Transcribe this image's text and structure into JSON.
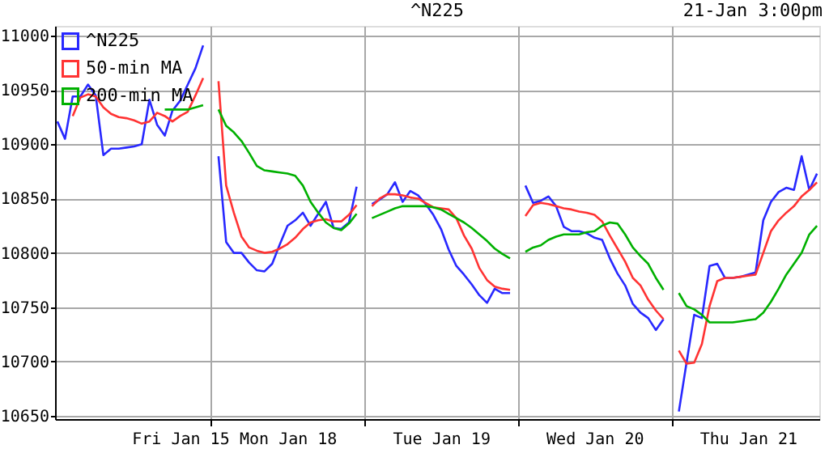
{
  "chart_data": {
    "type": "line",
    "title": "^N225",
    "annotations": [
      "21-Jan 3:00pm"
    ],
    "categories": [
      null,
      null,
      null,
      null,
      null,
      null,
      null,
      null,
      null,
      null,
      null,
      null,
      null,
      null,
      null,
      null,
      "Fri Jan 15",
      null,
      null,
      null,
      null,
      null,
      null,
      null,
      null,
      null,
      null,
      null,
      null,
      null,
      "Mon Jan 18",
      null,
      null,
      null,
      null,
      null,
      null,
      null,
      null,
      null,
      null,
      null,
      null,
      null,
      null,
      null,
      null,
      null,
      null,
      null,
      "Tue Jan 19",
      null,
      null,
      null,
      null,
      null,
      null,
      null,
      null,
      null,
      null,
      null,
      null,
      null,
      null,
      null,
      null,
      null,
      null,
      null,
      "Wed Jan 20",
      null,
      null,
      null,
      null,
      null,
      null,
      null,
      null,
      null,
      null,
      null,
      null,
      null,
      null,
      null,
      null,
      null,
      null,
      null,
      "Thu Jan 21",
      null,
      null,
      null,
      null,
      null,
      null,
      null,
      null,
      null
    ],
    "ylim": [
      10647,
      11009
    ],
    "yticks": [
      10650,
      10700,
      10750,
      10800,
      10850,
      10900,
      10950,
      11000
    ],
    "grid": true,
    "legend": "top left",
    "marker": "none",
    "line_style": "solid",
    "series": [
      {
        "name": "^N225",
        "color": "#2828ff",
        "values": [
          10921,
          10905,
          10944,
          10944,
          10955,
          10945,
          10890,
          10896,
          10896,
          10897,
          10898,
          10900,
          10941,
          10918,
          10908,
          10931,
          10940,
          10955,
          10970,
          10991,
          null,
          10889,
          10810,
          10800,
          10800,
          10791,
          10784,
          10783,
          10790,
          10808,
          10825,
          10830,
          10837,
          10825,
          10836,
          10847,
          10823,
          10822,
          10828,
          10861,
          null,
          10845,
          10849,
          10854,
          10865,
          10847,
          10857,
          10853,
          10845,
          10835,
          10822,
          10803,
          10788,
          10780,
          10771,
          10761,
          10754,
          10767,
          10763,
          10763,
          null,
          10862,
          10846,
          10848,
          10852,
          10843,
          10824,
          10820,
          10820,
          10818,
          10814,
          10812,
          10795,
          10781,
          10770,
          10753,
          10745,
          10740,
          10729,
          10739,
          null,
          10654,
          10699,
          10743,
          10740,
          10788,
          10790,
          10777,
          10777,
          10778,
          10780,
          10782,
          10830,
          10847,
          10856,
          10860,
          10858,
          10889,
          10858,
          10873
        ]
      },
      {
        "name": "50-min MA",
        "color": "#ff3333",
        "values": [
          null,
          null,
          10926,
          10943,
          10946,
          10944,
          10934,
          10928,
          10925,
          10924,
          10922,
          10919,
          10921,
          10929,
          10926,
          10921,
          10926,
          10930,
          10945,
          10961,
          null,
          10958,
          10862,
          10837,
          10815,
          10805,
          10802,
          10800,
          10801,
          10804,
          10808,
          10814,
          10822,
          10828,
          10830,
          10831,
          10829,
          10829,
          10835,
          10844,
          null,
          10843,
          10850,
          10854,
          10854,
          10853,
          10851,
          10850,
          10846,
          10842,
          10841,
          10840,
          10832,
          10816,
          10804,
          10786,
          10775,
          10769,
          10767,
          10766,
          null,
          10834,
          10844,
          10846,
          10845,
          10843,
          10841,
          10840,
          10838,
          10837,
          10835,
          10829,
          10816,
          10804,
          10792,
          10777,
          10770,
          10757,
          10747,
          10739,
          null,
          10710,
          10698,
          10699,
          10716,
          10751,
          10774,
          10777,
          10777,
          10778,
          10779,
          10780,
          10800,
          10820,
          10830,
          10837,
          10843,
          10852,
          10858,
          10865
        ]
      },
      {
        "name": "200-min MA",
        "color": "#00b000",
        "values": [
          null,
          null,
          null,
          null,
          null,
          null,
          null,
          null,
          null,
          null,
          null,
          null,
          null,
          null,
          10932,
          10932,
          10932,
          10932,
          10934,
          10936,
          null,
          10932,
          10917,
          10911,
          10903,
          10892,
          10880,
          10876,
          10875,
          10874,
          10873,
          10871,
          10862,
          10847,
          10837,
          10828,
          10823,
          10821,
          10827,
          10836,
          null,
          10832,
          10835,
          10838,
          10841,
          10843,
          10843,
          10843,
          10843,
          10842,
          10840,
          10836,
          10832,
          10828,
          10823,
          10817,
          10811,
          10804,
          10799,
          10795,
          null,
          10801,
          10805,
          10807,
          10812,
          10815,
          10817,
          10817,
          10817,
          10819,
          10820,
          10825,
          10828,
          10827,
          10817,
          10805,
          10797,
          10790,
          10777,
          10766,
          null,
          10763,
          10751,
          10748,
          10743,
          10736,
          10736,
          10736,
          10736,
          10737,
          10738,
          10739,
          10745,
          10755,
          10767,
          10780,
          10790,
          10800,
          10817,
          10825
        ]
      }
    ]
  }
}
